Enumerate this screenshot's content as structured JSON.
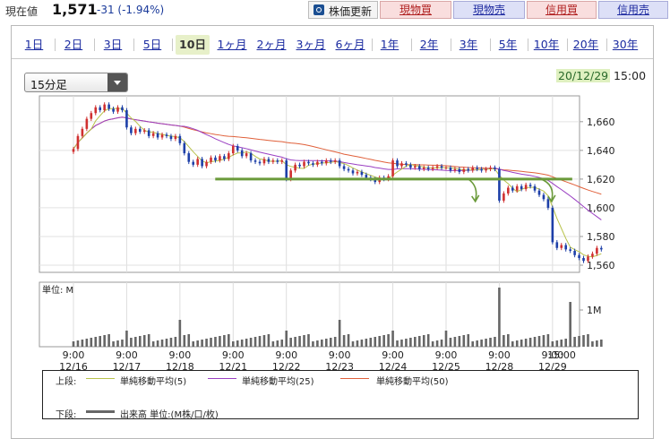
{
  "header": {
    "price_label": "現在値",
    "price_value": "1,571",
    "price_change": "-31 (-1.94%)",
    "refresh_button": "株価更新",
    "trade_buttons": [
      {
        "label": "現物買",
        "kind": "buy"
      },
      {
        "label": "現物売",
        "kind": "sell"
      },
      {
        "label": "信用買",
        "kind": "buy"
      },
      {
        "label": "信用売",
        "kind": "sell"
      }
    ]
  },
  "range_tabs": [
    {
      "label": "1日",
      "active": false
    },
    {
      "label": "2日",
      "active": false
    },
    {
      "label": "3日",
      "active": false
    },
    {
      "label": "5日",
      "active": false
    },
    {
      "label": "10日",
      "active": true
    },
    {
      "label": "1ヶ月",
      "active": false
    },
    {
      "label": "2ヶ月",
      "active": false
    },
    {
      "label": "3ヶ月",
      "active": false
    },
    {
      "label": "6ヶ月",
      "active": false
    },
    {
      "label": "1年",
      "active": false
    },
    {
      "label": "2年",
      "active": false
    },
    {
      "label": "3年",
      "active": false
    },
    {
      "label": "5年",
      "active": false
    },
    {
      "label": "10年",
      "active": false
    },
    {
      "label": "20年",
      "active": false
    },
    {
      "label": "30年",
      "active": false
    }
  ],
  "interval_select": {
    "value": "15分足"
  },
  "timestamp": {
    "date": "20/12/29",
    "time": "15:00"
  },
  "colors": {
    "up": "#d03030",
    "down": "#1d3fa8",
    "ma5": "#b8c24a",
    "ma25": "#9a3fc2",
    "ma50": "#e0603a",
    "support": "#6a9a3a",
    "volume": "#666666",
    "buy_bg": "#f9dede",
    "sell_bg": "#dde0f7",
    "active_tab": "#e7f0c9"
  },
  "chart_data": {
    "type": "candlestick",
    "ylim": [
      1555,
      1678
    ],
    "y_ticks": [
      "1,660",
      "1,640",
      "1,620",
      "1,600",
      "1,580",
      "1,560"
    ],
    "volume_unit_label": "単位: M",
    "volume_ticks": [
      "1M"
    ],
    "x_ticks": [
      {
        "time": "9:00",
        "date": "12/16"
      },
      {
        "time": "9:00",
        "date": "12/17"
      },
      {
        "time": "9:00",
        "date": "12/18"
      },
      {
        "time": "9:00",
        "date": "12/21"
      },
      {
        "time": "9:00",
        "date": "12/22"
      },
      {
        "time": "9:00",
        "date": "12/23"
      },
      {
        "time": "9:00",
        "date": "12/24"
      },
      {
        "time": "9:00",
        "date": "12/25"
      },
      {
        "time": "9:00",
        "date": "12/28"
      },
      {
        "time": "9:00",
        "date": "12/29"
      },
      {
        "time": "15:00",
        "date": ""
      }
    ],
    "days": [
      {
        "date": "12/16",
        "close": [
          1641,
          1650,
          1655,
          1662,
          1666,
          1670,
          1668,
          1672,
          1669,
          1667,
          1670,
          1668
        ]
      },
      {
        "date": "12/17",
        "close": [
          1656,
          1652,
          1655,
          1653,
          1654,
          1650,
          1652,
          1649,
          1651,
          1650,
          1648,
          1650
        ]
      },
      {
        "date": "12/18",
        "close": [
          1645,
          1638,
          1632,
          1630,
          1634,
          1629,
          1632,
          1635,
          1633,
          1636,
          1634,
          1638
        ]
      },
      {
        "date": "12/21",
        "close": [
          1643,
          1640,
          1636,
          1638,
          1633,
          1632,
          1631,
          1634,
          1632,
          1633,
          1632,
          1633
        ]
      },
      {
        "date": "12/22",
        "close": [
          1620,
          1626,
          1630,
          1629,
          1632,
          1631,
          1630,
          1632,
          1631,
          1633,
          1632,
          1633
        ]
      },
      {
        "date": "12/23",
        "close": [
          1629,
          1627,
          1626,
          1624,
          1625,
          1623,
          1621,
          1620,
          1618,
          1621,
          1620,
          1622
        ]
      },
      {
        "date": "12/24",
        "close": [
          1633,
          1629,
          1631,
          1630,
          1628,
          1629,
          1627,
          1628,
          1627,
          1628,
          1629,
          1628
        ]
      },
      {
        "date": "12/25",
        "close": [
          1628,
          1626,
          1627,
          1625,
          1627,
          1626,
          1628,
          1627,
          1626,
          1627,
          1628,
          1627
        ]
      },
      {
        "date": "12/28",
        "close": [
          1605,
          1610,
          1614,
          1612,
          1615,
          1613,
          1616,
          1615,
          1612,
          1609,
          1606,
          1600
        ]
      },
      {
        "date": "12/29",
        "close": [
          1576,
          1572,
          1574,
          1571,
          1570,
          1567,
          1565,
          1563,
          1566,
          1568,
          1572,
          1571
        ]
      }
    ],
    "series": [
      {
        "name": "単純移動平均(5)"
      },
      {
        "name": "単純移動平均(25)"
      },
      {
        "name": "単純移動平均(50)"
      }
    ],
    "annotations": [
      {
        "type": "horizontal-line",
        "y": 1620,
        "from": "12/21",
        "to": "12/29"
      }
    ]
  },
  "legend": {
    "upper_label": "上段:",
    "lower_label": "下段:",
    "ma5": "単純移動平均(5)",
    "ma25": "単純移動平均(25)",
    "ma50": "単純移動平均(50)",
    "volume": "出来高 単位:(M株/口/枚)"
  }
}
